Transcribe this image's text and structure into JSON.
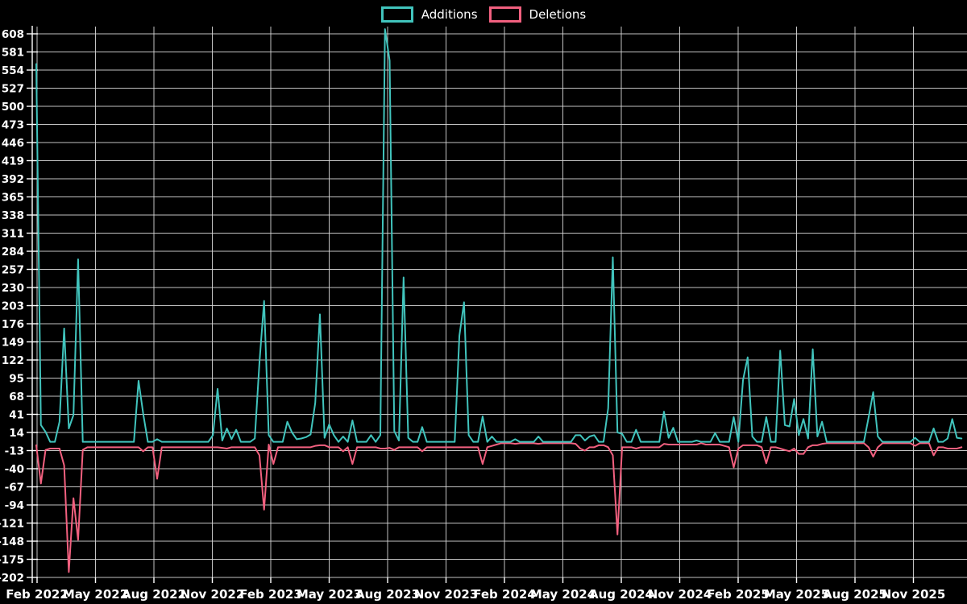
{
  "legend": {
    "additions_label": "Additions",
    "deletions_label": "Deletions"
  },
  "colors": {
    "background": "#000000",
    "grid": "#d8d8d8",
    "axis_text": "#ffffff",
    "additions": "#41c4bd",
    "deletions": "#f2607f"
  },
  "chart_data": {
    "type": "line",
    "title": "",
    "xlabel": "",
    "ylabel": "",
    "grid": true,
    "legend_position": "top-center",
    "x_unit": "week",
    "x_tick_labels": [
      "Feb 2022",
      "May 2022",
      "Aug 2022",
      "Nov 2022",
      "Feb 2023",
      "May 2023",
      "Aug 2023",
      "Nov 2023",
      "Feb 2024",
      "May 2024",
      "Aug 2024",
      "Nov 2024",
      "Feb 2025",
      "May 2025",
      "Aug 2025",
      "Nov 2025"
    ],
    "y_max": 608,
    "y_min": -202,
    "y_step": 27,
    "series": [
      {
        "name": "Deletions",
        "color": "#f2607f",
        "values": [
          -5,
          -62,
          -12,
          -10,
          -10,
          -10,
          -35,
          -194,
          -84,
          -146,
          -12,
          -8,
          -8,
          -8,
          -8,
          -8,
          -8,
          -8,
          -8,
          -8,
          -8,
          -8,
          -8,
          -14,
          -8,
          -8,
          -55,
          -8,
          -8,
          -8,
          -8,
          -8,
          -8,
          -8,
          -8,
          -8,
          -8,
          -8,
          -8,
          -8,
          -9,
          -10,
          -8,
          -8,
          -8,
          -8,
          -8,
          -8,
          -20,
          -101,
          -4,
          -33,
          -8,
          -8,
          -8,
          -8,
          -8,
          -8,
          -8,
          -8,
          -6,
          -5,
          -5,
          -8,
          -8,
          -8,
          -14,
          -8,
          -33,
          -8,
          -8,
          -8,
          -8,
          -8,
          -10,
          -10,
          -9,
          -12,
          -8,
          -8,
          -8,
          -8,
          -8,
          -14,
          -8,
          -8,
          -8,
          -8,
          -8,
          -8,
          -8,
          -8,
          -8,
          -8,
          -8,
          -8,
          -33,
          -8,
          -6,
          -4,
          -2,
          -2,
          -2,
          -3,
          -2,
          -2,
          -2,
          -2,
          -3,
          -2,
          -2,
          -2,
          -2,
          -2,
          -2,
          -2,
          -3,
          -10,
          -13,
          -8,
          -8,
          -5,
          -5,
          -8,
          -20,
          -138,
          -8,
          -8,
          -8,
          -10,
          -8,
          -8,
          -8,
          -8,
          -8,
          -3,
          -4,
          -4,
          -4,
          -4,
          -4,
          -4,
          -4,
          -2,
          -4,
          -4,
          -4,
          -4,
          -6,
          -8,
          -38,
          -10,
          -5,
          -5,
          -5,
          -5,
          -8,
          -32,
          -8,
          -8,
          -10,
          -12,
          -14,
          -10,
          -18,
          -18,
          -8,
          -5,
          -5,
          -3,
          -2,
          -2,
          -2,
          -2,
          -2,
          -2,
          -2,
          -2,
          -2,
          -8,
          -22,
          -8,
          -2,
          -2,
          -2,
          -2,
          -2,
          -2,
          -2,
          -6,
          -2,
          -2,
          -2,
          -20,
          -8,
          -8,
          -10,
          -10,
          -10,
          -8
        ]
      },
      {
        "name": "Additions",
        "color": "#41c4bd",
        "values": [
          563,
          25,
          15,
          0,
          0,
          30,
          169,
          20,
          40,
          272,
          0,
          0,
          0,
          0,
          0,
          0,
          0,
          0,
          0,
          0,
          0,
          0,
          91,
          42,
          0,
          0,
          4,
          0,
          0,
          0,
          0,
          0,
          0,
          0,
          0,
          0,
          0,
          0,
          10,
          79,
          2,
          20,
          4,
          18,
          0,
          0,
          0,
          5,
          118,
          210,
          10,
          0,
          0,
          0,
          30,
          14,
          4,
          5,
          7,
          11,
          58,
          190,
          6,
          26,
          10,
          0,
          8,
          0,
          32,
          0,
          0,
          0,
          10,
          0,
          10,
          615,
          568,
          16,
          2,
          245,
          6,
          0,
          0,
          22,
          0,
          0,
          0,
          0,
          0,
          0,
          0,
          158,
          208,
          10,
          0,
          0,
          38,
          0,
          8,
          0,
          0,
          0,
          0,
          4,
          0,
          0,
          0,
          0,
          8,
          0,
          0,
          0,
          0,
          0,
          0,
          0,
          10,
          10,
          2,
          8,
          10,
          0,
          0,
          50,
          275,
          14,
          12,
          0,
          0,
          18,
          0,
          0,
          0,
          0,
          0,
          45,
          6,
          21,
          0,
          0,
          0,
          0,
          2,
          0,
          0,
          0,
          13,
          0,
          0,
          0,
          37,
          0,
          92,
          126,
          8,
          0,
          0,
          37,
          0,
          0,
          136,
          25,
          23,
          64,
          10,
          34,
          5,
          138,
          8,
          30,
          0,
          0,
          0,
          0,
          0,
          0,
          0,
          0,
          0,
          36,
          74,
          8,
          0,
          0,
          0,
          0,
          0,
          0,
          0,
          6,
          0,
          0,
          0,
          20,
          0,
          0,
          5,
          34,
          6,
          5
        ]
      }
    ]
  }
}
